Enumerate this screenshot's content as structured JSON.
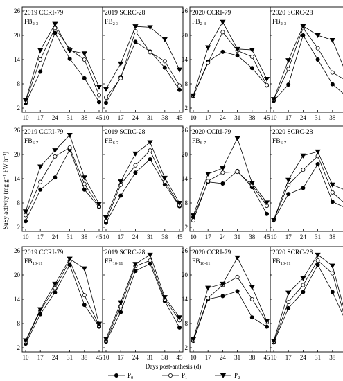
{
  "figure": {
    "ylabel": "SuSy activity (mg g⁻¹ FW h⁻¹)",
    "xlabel": "Days post-anthesis (d)",
    "yticks": [
      2,
      8,
      14,
      20,
      26
    ],
    "xticks": [
      10,
      17,
      24,
      31,
      38,
      45
    ],
    "legend": [
      {
        "name": "P0",
        "marker": "filled-circle"
      },
      {
        "name": "P1",
        "marker": "open-circle"
      },
      {
        "name": "P2",
        "marker": "filled-triangle-down"
      }
    ]
  },
  "chart_data": [
    {
      "type": "line",
      "year": "2019",
      "cultivar": "CCRI-79",
      "branch": "FB",
      "branch_sub": "2-3",
      "x": [
        10,
        17,
        24,
        31,
        38,
        45
      ],
      "ylim": [
        2,
        26
      ],
      "series": [
        {
          "name": "P0",
          "values": [
            3.2,
            11.0,
            20.6,
            14.2,
            9.4,
            3.5
          ]
        },
        {
          "name": "P1",
          "values": [
            3.6,
            14.0,
            21.8,
            16.6,
            14.0,
            5.2
          ]
        },
        {
          "name": "P2",
          "values": [
            3.9,
            16.3,
            22.8,
            16.2,
            15.5,
            7.2
          ]
        }
      ]
    },
    {
      "type": "line",
      "year": "2019",
      "cultivar": "SCRC-28",
      "branch": "FB",
      "branch_sub": "2-3",
      "x": [
        10,
        17,
        24,
        31,
        38,
        45
      ],
      "ylim": [
        2,
        26
      ],
      "series": [
        {
          "name": "P0",
          "values": [
            3.3,
            9.7,
            18.4,
            16.0,
            12.0,
            6.5
          ]
        },
        {
          "name": "P1",
          "values": [
            4.6,
            9.4,
            21.0,
            15.8,
            13.6,
            7.6
          ]
        },
        {
          "name": "P2",
          "values": [
            6.7,
            13.0,
            22.2,
            22.0,
            19.0,
            11.5
          ]
        }
      ]
    },
    {
      "type": "line",
      "year": "2020",
      "cultivar": "CCRI-79",
      "branch": "FB",
      "branch_sub": "2-3",
      "x": [
        10,
        17,
        24,
        31,
        38,
        45
      ],
      "ylim": [
        2,
        26
      ],
      "series": [
        {
          "name": "P0",
          "values": [
            4.9,
            13.5,
            15.9,
            15.0,
            11.9,
            7.6
          ]
        },
        {
          "name": "P1",
          "values": [
            5.0,
            13.2,
            20.8,
            16.2,
            14.7,
            7.7
          ]
        },
        {
          "name": "P2",
          "values": [
            5.1,
            17.0,
            23.3,
            16.6,
            16.4,
            9.2
          ]
        }
      ]
    },
    {
      "type": "line",
      "year": "2020",
      "cultivar": "SCRC-28",
      "branch": "FB",
      "branch_sub": "2-3",
      "x": [
        10,
        17,
        24,
        31,
        38,
        45
      ],
      "ylim": [
        2,
        26
      ],
      "series": [
        {
          "name": "P0",
          "values": [
            3.8,
            7.8,
            20.0,
            14.0,
            7.9,
            4.8
          ]
        },
        {
          "name": "P1",
          "values": [
            4.1,
            11.7,
            21.8,
            16.8,
            10.8,
            8.7
          ]
        },
        {
          "name": "P2",
          "values": [
            4.2,
            13.8,
            22.3,
            20.0,
            18.8,
            10.0
          ]
        }
      ]
    },
    {
      "type": "line",
      "year": "2019",
      "cultivar": "CCRI-79",
      "branch": "FB",
      "branch_sub": "6-7",
      "x": [
        10,
        17,
        24,
        31,
        38,
        45
      ],
      "ylim": [
        2,
        26
      ],
      "series": [
        {
          "name": "P0",
          "values": [
            3.5,
            11.3,
            14.3,
            21.2,
            11.3,
            7.0
          ]
        },
        {
          "name": "P1",
          "values": [
            5.0,
            13.2,
            19.5,
            21.7,
            12.7,
            7.2
          ]
        },
        {
          "name": "P2",
          "values": [
            5.9,
            17.0,
            21.0,
            24.8,
            14.3,
            7.8
          ]
        }
      ]
    },
    {
      "type": "line",
      "year": "2019",
      "cultivar": "SCRC-28",
      "branch": "FB",
      "branch_sub": "6-7",
      "x": [
        10,
        17,
        24,
        31,
        38,
        45
      ],
      "ylim": [
        2,
        26
      ],
      "series": [
        {
          "name": "P0",
          "values": [
            3.1,
            9.8,
            15.5,
            18.8,
            12.6,
            7.2
          ]
        },
        {
          "name": "P1",
          "values": [
            3.6,
            12.5,
            17.3,
            21.0,
            13.3,
            7.4
          ]
        },
        {
          "name": "P2",
          "values": [
            4.4,
            13.3,
            20.2,
            23.0,
            14.2,
            8.0
          ]
        }
      ]
    },
    {
      "type": "line",
      "year": "2020",
      "cultivar": "CCRI-79",
      "branch": "FB",
      "branch_sub": "6-7",
      "x": [
        10,
        17,
        24,
        31,
        38,
        45
      ],
      "ylim": [
        2,
        26
      ],
      "series": [
        {
          "name": "P0",
          "values": [
            4.5,
            13.2,
            12.8,
            15.9,
            11.9,
            5.3
          ]
        },
        {
          "name": "P1",
          "values": [
            3.7,
            13.4,
            15.5,
            15.7,
            12.4,
            7.3
          ]
        },
        {
          "name": "P2",
          "values": [
            4.9,
            15.2,
            16.6,
            24.0,
            12.9,
            8.1
          ]
        }
      ]
    },
    {
      "type": "line",
      "year": "2020",
      "cultivar": "SCRC-28",
      "branch": "FB",
      "branch_sub": "6-7",
      "x": [
        10,
        17,
        24,
        31,
        38,
        45
      ],
      "ylim": [
        2,
        26
      ],
      "series": [
        {
          "name": "P0",
          "values": [
            3.8,
            10.2,
            11.7,
            17.6,
            8.3,
            6.6
          ]
        },
        {
          "name": "P1",
          "values": [
            3.8,
            12.5,
            16.2,
            19.6,
            10.6,
            7.4
          ]
        },
        {
          "name": "P2",
          "values": [
            3.8,
            13.7,
            19.7,
            20.7,
            12.5,
            11.0
          ]
        }
      ]
    },
    {
      "type": "line",
      "year": "2019",
      "cultivar": "CCRI-79",
      "branch": "FB",
      "branch_sub": "10-11",
      "x": [
        10,
        17,
        24,
        31,
        38,
        45
      ],
      "ylim": [
        2,
        26
      ],
      "series": [
        {
          "name": "P0",
          "values": [
            3.0,
            10.3,
            15.7,
            22.5,
            12.6,
            7.2
          ]
        },
        {
          "name": "P1",
          "values": [
            3.5,
            11.2,
            16.8,
            23.5,
            15.0,
            7.5
          ]
        },
        {
          "name": "P2",
          "values": [
            3.8,
            11.5,
            17.8,
            24.0,
            21.6,
            7.9
          ]
        }
      ]
    },
    {
      "type": "line",
      "year": "2019",
      "cultivar": "SCRC-28",
      "branch": "FB",
      "branch_sub": "10-11",
      "x": [
        10,
        17,
        24,
        31,
        38,
        45
      ],
      "ylim": [
        2,
        26
      ],
      "series": [
        {
          "name": "P0",
          "values": [
            3.5,
            10.8,
            21.0,
            22.8,
            13.5,
            7.0
          ]
        },
        {
          "name": "P1",
          "values": [
            3.7,
            12.3,
            22.2,
            23.6,
            14.0,
            8.8
          ]
        },
        {
          "name": "P2",
          "values": [
            4.2,
            13.2,
            22.7,
            25.0,
            14.5,
            9.5
          ]
        }
      ]
    },
    {
      "type": "line",
      "year": "2020",
      "cultivar": "CCRI-79",
      "branch": "FB",
      "branch_sub": "10-11",
      "x": [
        10,
        17,
        24,
        31,
        38,
        45
      ],
      "ylim": [
        2,
        26
      ],
      "series": [
        {
          "name": "P0",
          "values": [
            3.7,
            14.0,
            14.8,
            16.0,
            9.5,
            7.2
          ]
        },
        {
          "name": "P1",
          "values": [
            3.9,
            14.3,
            17.5,
            19.5,
            14.0,
            8.3
          ]
        },
        {
          "name": "P2",
          "values": [
            4.1,
            16.8,
            17.8,
            24.3,
            17.0,
            8.6
          ]
        }
      ]
    },
    {
      "type": "line",
      "year": "2020",
      "cultivar": "SCRC-28",
      "branch": "FB",
      "branch_sub": "10-11",
      "x": [
        10,
        17,
        24,
        31,
        38,
        45
      ],
      "ylim": [
        2,
        26
      ],
      "series": [
        {
          "name": "P0",
          "values": [
            3.3,
            11.8,
            15.8,
            22.5,
            15.8,
            7.8
          ]
        },
        {
          "name": "P1",
          "values": [
            3.5,
            13.3,
            17.5,
            23.6,
            20.4,
            7.4
          ]
        },
        {
          "name": "P2",
          "values": [
            3.7,
            15.6,
            19.2,
            25.0,
            22.3,
            8.7
          ]
        }
      ]
    }
  ]
}
